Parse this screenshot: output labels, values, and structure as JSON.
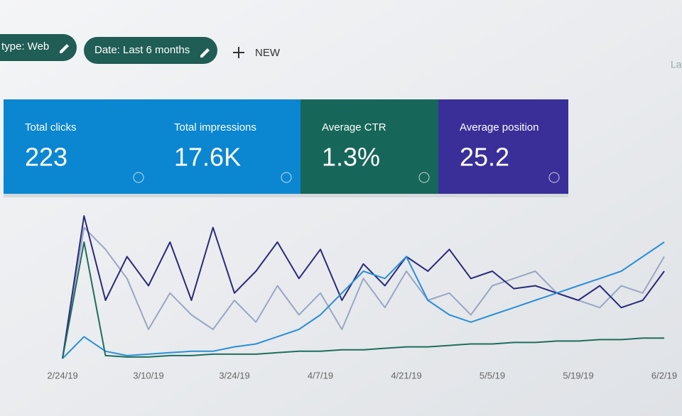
{
  "filters": [
    {
      "label": "type: Web"
    },
    {
      "label": "Date: Last 6 months"
    }
  ],
  "new_button": "NEW",
  "corner_text": "La",
  "cards": [
    {
      "label": "Total clicks",
      "value": "223",
      "color": "#0b86d1"
    },
    {
      "label": "Total impressions",
      "value": "17.6K",
      "color": "#0b86d1"
    },
    {
      "label": "Average CTR",
      "value": "1.3%",
      "color": "#17665a"
    },
    {
      "label": "Average position",
      "value": "25.2",
      "color": "#3a2f98"
    }
  ],
  "chart_data": {
    "type": "line",
    "categories": [
      "2/24/19",
      null,
      null,
      null,
      "3/10/19",
      null,
      null,
      null,
      "3/24/19",
      null,
      null,
      null,
      "4/7/19",
      null,
      null,
      null,
      "4/21/19",
      null,
      null,
      null,
      "5/5/19",
      null,
      null,
      null,
      "5/19/19",
      null,
      null,
      null,
      "6/2/19"
    ],
    "ylim": [
      0,
      100
    ],
    "series": [
      {
        "color": "#9aa6c4",
        "values": [
          0,
          90,
          75,
          55,
          20,
          45,
          30,
          20,
          40,
          25,
          50,
          30,
          45,
          20,
          55,
          35,
          60,
          40,
          45,
          30,
          50,
          55,
          60,
          45,
          40,
          35,
          50,
          45,
          70
        ]
      },
      {
        "color": "#2a2a7a",
        "values": [
          0,
          98,
          40,
          70,
          50,
          80,
          40,
          90,
          45,
          60,
          80,
          55,
          75,
          40,
          65,
          50,
          70,
          60,
          75,
          55,
          60,
          48,
          50,
          45,
          40,
          50,
          35,
          40,
          60
        ]
      },
      {
        "color": "#2b8fd6",
        "values": [
          0,
          15,
          5,
          2,
          3,
          4,
          5,
          5,
          8,
          10,
          15,
          20,
          30,
          45,
          60,
          55,
          70,
          40,
          30,
          25,
          30,
          35,
          40,
          45,
          50,
          55,
          60,
          70,
          80
        ]
      },
      {
        "color": "#1e6e5e",
        "values": [
          0,
          80,
          2,
          1,
          1,
          2,
          2,
          3,
          3,
          3,
          4,
          5,
          5,
          6,
          6,
          7,
          8,
          8,
          9,
          10,
          10,
          11,
          11,
          12,
          12,
          13,
          13,
          14,
          14
        ]
      }
    ]
  }
}
